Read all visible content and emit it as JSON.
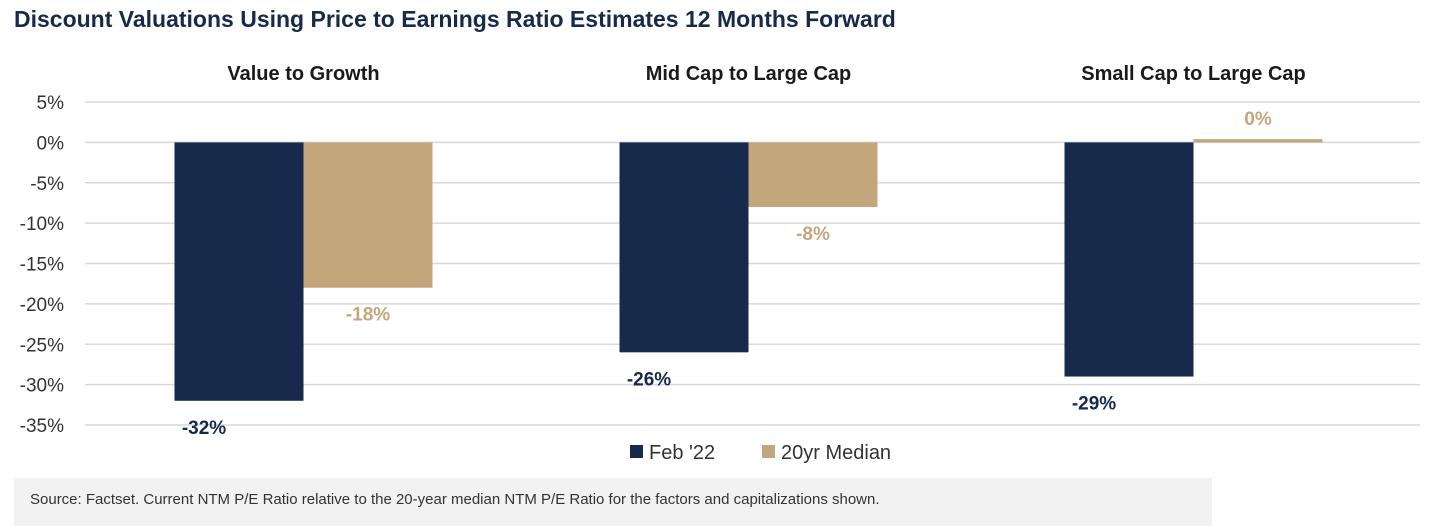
{
  "chart_data": {
    "type": "bar",
    "title": "Discount Valuations Using Price to Earnings Ratio Estimates 12 Months Forward",
    "categories": [
      "Value to Growth",
      "Mid Cap to Large Cap",
      "Small Cap to Large Cap"
    ],
    "series": [
      {
        "name": "Feb '22",
        "values": [
          -32,
          -26,
          -29
        ],
        "labels": [
          "-32%",
          "-26%",
          "-29%"
        ],
        "color": "#172a4b"
      },
      {
        "name": "20yr Median",
        "values": [
          -18,
          -8,
          0.4
        ],
        "labels": [
          "-18%",
          "-8%",
          "0%"
        ],
        "color": "#c4a67c"
      }
    ],
    "ylim": [
      -35,
      5
    ],
    "yticks": [
      5,
      0,
      -5,
      -10,
      -15,
      -20,
      -25,
      -30,
      -35
    ],
    "ytick_labels": [
      "5%",
      "0%",
      "-5%",
      "-10%",
      "-15%",
      "-20%",
      "-25%",
      "-30%",
      "-35%"
    ],
    "grid": true,
    "legend_position": "bottom-center"
  },
  "source_note": "Source: Factset. Current NTM P/E Ratio relative to the 20-year median NTM P/E Ratio for the factors and capitalizations shown."
}
